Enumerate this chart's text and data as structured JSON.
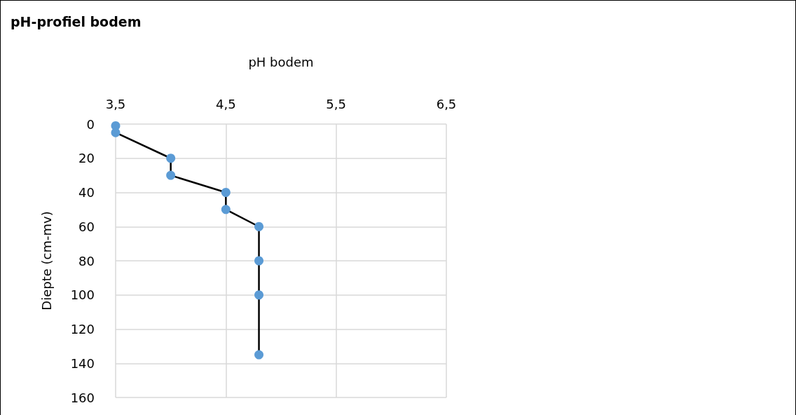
{
  "chart_data": {
    "type": "line",
    "title": "pH-profiel bodem",
    "xlabel": "pH bodem",
    "ylabel": "Diepte (cm-mv)",
    "xlim": [
      3.5,
      6.5
    ],
    "xticks": [
      {
        "value": 3.5,
        "label": "3,5"
      },
      {
        "value": 4.5,
        "label": "4,5"
      },
      {
        "value": 5.5,
        "label": "5,5"
      },
      {
        "value": 6.5,
        "label": "6,5"
      }
    ],
    "ylim": [
      160,
      0
    ],
    "yticks": [
      0,
      20,
      40,
      60,
      80,
      100,
      120,
      140,
      160
    ],
    "grid": true,
    "marker": "circle",
    "line_style": "solid",
    "series": [
      {
        "color": "#5b9bd5",
        "x": [
          3.5,
          3.5,
          4.0,
          4.0,
          4.5,
          4.5,
          4.8,
          4.8,
          4.8,
          4.8
        ],
        "values": [
          1,
          5,
          20,
          30,
          40,
          50,
          60,
          80,
          100,
          135
        ]
      }
    ]
  }
}
